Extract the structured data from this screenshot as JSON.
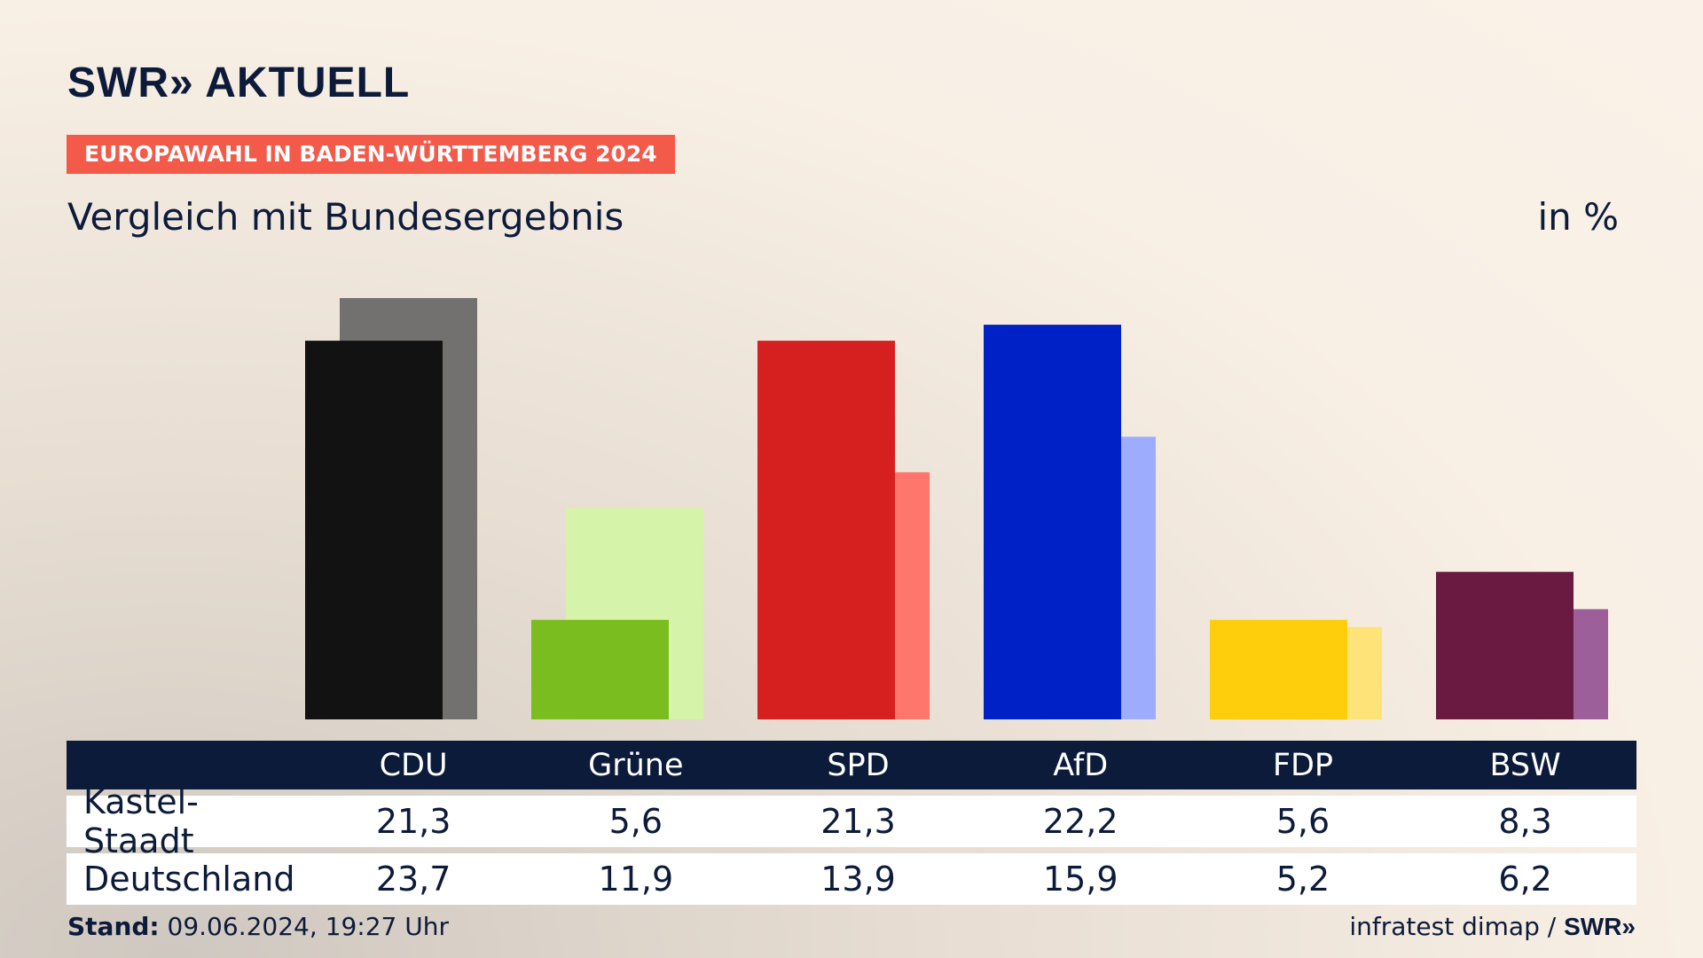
{
  "brand": {
    "logo": "SWR» AKTUELL"
  },
  "tag": "EUROPAWAHL IN BADEN-WÜRTTEMBERG 2024",
  "subtitle": "Vergleich mit Bundesergebnis",
  "unit": "in %",
  "chart_data": {
    "type": "bar",
    "categories": [
      "CDU",
      "Grüne",
      "SPD",
      "AfD",
      "FDP",
      "BSW"
    ],
    "series": [
      {
        "name": "Kastel-Staadt",
        "values": [
          21.3,
          5.6,
          21.3,
          22.2,
          5.6,
          8.3
        ]
      },
      {
        "name": "Deutschland",
        "values": [
          23.7,
          11.9,
          13.9,
          15.9,
          5.2,
          6.2
        ]
      }
    ],
    "colors_primary": [
      "#121212",
      "#7abd1e",
      "#d61f1f",
      "#0021c6",
      "#fecd0b",
      "#6a1a40"
    ],
    "colors_secondary": [
      "#727170",
      "#d6f4a9",
      "#ff766c",
      "#9eacfd",
      "#fee378",
      "#9d5f9a"
    ],
    "ylim": [
      0,
      25
    ]
  },
  "table": {
    "headers": [
      "CDU",
      "Grüne",
      "SPD",
      "AfD",
      "FDP",
      "BSW"
    ],
    "rows": [
      {
        "label": "Kastel-Staadt",
        "values": [
          "21,3",
          "5,6",
          "21,3",
          "22,2",
          "5,6",
          "8,3"
        ]
      },
      {
        "label": "Deutschland",
        "values": [
          "23,7",
          "11,9",
          "13,9",
          "15,9",
          "5,2",
          "6,2"
        ]
      }
    ]
  },
  "footer": {
    "stand_label": "Stand:",
    "stand_value": "09.06.2024, 19:27 Uhr",
    "source": "infratest dimap /",
    "source_brand": "SWR»"
  }
}
